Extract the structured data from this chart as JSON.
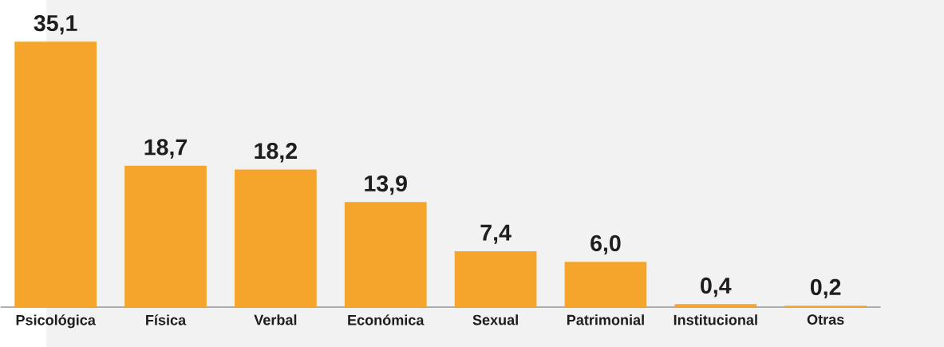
{
  "chart_data": {
    "type": "bar",
    "categories": [
      "Psicológica",
      "Física",
      "Verbal",
      "Económica",
      "Sexual",
      "Patrimonial",
      "Institucional",
      "Otras"
    ],
    "values": [
      35.1,
      18.7,
      18.2,
      13.9,
      7.4,
      6.0,
      0.4,
      0.2
    ],
    "value_labels": [
      "35,1",
      "18,7",
      "18,2",
      "13,9",
      "7,4",
      "6,0",
      "0,4",
      "0,2"
    ],
    "color": "#f5a52b"
  }
}
